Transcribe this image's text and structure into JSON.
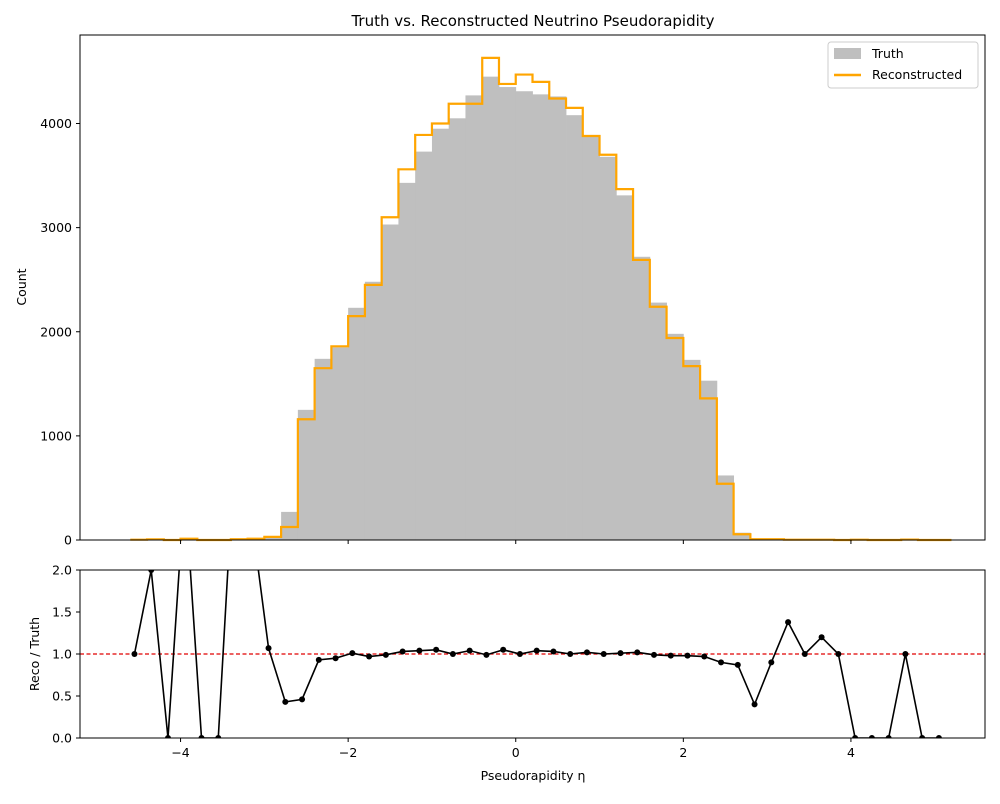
{
  "chart_data": [
    {
      "type": "bar",
      "title": "Truth vs. Reconstructed Neutrino Pseudorapidity",
      "xlabel": "",
      "ylabel": "Count",
      "xlim": [
        -5.2,
        5.6
      ],
      "ylim": [
        0,
        4850
      ],
      "yticks": [
        0,
        1000,
        2000,
        3000,
        4000
      ],
      "yticklabels": [
        "0",
        "1000",
        "2000",
        "3000",
        "4000"
      ],
      "xticks": [
        -4,
        -2,
        0,
        2,
        4
      ],
      "bin_edges": [
        -4.6,
        -4.4,
        -4.2,
        -4.0,
        -3.8,
        -3.6,
        -3.4,
        -3.2,
        -3.0,
        -2.8,
        -2.6,
        -2.4,
        -2.2,
        -2.0,
        -1.8,
        -1.6,
        -1.4,
        -1.2,
        -1.0,
        -0.8,
        -0.6,
        -0.4,
        -0.2,
        0.0,
        0.2,
        0.4,
        0.6,
        0.8,
        1.0,
        1.2,
        1.4,
        1.6,
        1.8,
        2.0,
        2.2,
        2.4,
        2.6,
        2.8,
        3.0,
        3.2,
        3.4,
        3.6,
        3.8,
        4.0,
        4.2,
        4.4,
        4.6,
        4.8,
        5.0,
        5.2
      ],
      "legend": {
        "position": "upper right",
        "entries": [
          "Truth",
          "Reconstructed"
        ]
      },
      "series": [
        {
          "name": "Truth",
          "style": "filled-histogram",
          "color": "#bfbfbf",
          "values": [
            3,
            3,
            2,
            3,
            4,
            3,
            5,
            5,
            28,
            270,
            1250,
            1740,
            1850,
            2230,
            2480,
            3030,
            3430,
            3730,
            3950,
            4050,
            4270,
            4450,
            4350,
            4310,
            4280,
            4260,
            4080,
            3890,
            3680,
            3310,
            2720,
            2280,
            1980,
            1730,
            1530,
            620,
            70,
            4,
            3,
            4,
            3,
            3,
            4,
            3,
            3,
            3,
            4,
            3,
            3
          ]
        },
        {
          "name": "Reconstructed",
          "style": "step",
          "color": "#ffa500",
          "values": [
            3,
            6,
            0,
            12,
            0,
            0,
            8,
            12,
            30,
            125,
            1160,
            1650,
            1860,
            2150,
            2450,
            3100,
            3560,
            3890,
            4000,
            4190,
            4190,
            4630,
            4380,
            4470,
            4400,
            4240,
            4150,
            3880,
            3700,
            3370,
            2690,
            2240,
            1940,
            1670,
            1360,
            540,
            55,
            8,
            8,
            3,
            3,
            3,
            0,
            3,
            0,
            0,
            4,
            0,
            0
          ]
        }
      ]
    },
    {
      "type": "line",
      "xlabel": "Pseudorapidity η",
      "ylabel": "Reco / Truth",
      "xlim": [
        -5.2,
        5.6
      ],
      "ylim": [
        0,
        2.0
      ],
      "yticks": [
        0,
        0.5,
        1.0,
        1.5,
        2.0
      ],
      "yticklabels": [
        "0.0",
        "0.5",
        "1.0",
        "1.5",
        "2.0"
      ],
      "xticks": [
        -4,
        -2,
        0,
        2,
        4
      ],
      "xticklabels": [
        "−4",
        "−2",
        "0",
        "2",
        "4"
      ],
      "reference_line": {
        "y": 1.0,
        "color": "#e00000",
        "style": "dashed"
      },
      "series": [
        {
          "name": "Reco / Truth",
          "color": "#000000",
          "marker": "circle",
          "x": [
            -4.55,
            -4.35,
            -4.15,
            -3.95,
            -3.75,
            -3.55,
            -3.35,
            -3.15,
            -2.95,
            -2.75,
            -2.55,
            -2.35,
            -2.15,
            -1.95,
            -1.75,
            -1.55,
            -1.35,
            -1.15,
            -0.95,
            -0.75,
            -0.55,
            -0.35,
            -0.15,
            0.05,
            0.25,
            0.45,
            0.65,
            0.85,
            1.05,
            1.25,
            1.45,
            1.65,
            1.85,
            2.05,
            2.25,
            2.45,
            2.65,
            2.85,
            3.05,
            3.25,
            3.45,
            3.65,
            3.85,
            4.05,
            4.25,
            4.45,
            4.65,
            4.85,
            5.05
          ],
          "y": [
            1.0,
            2.0,
            0.0,
            3.0,
            0.0,
            0.0,
            3.5,
            2.6,
            1.07,
            0.43,
            0.46,
            0.93,
            0.95,
            1.01,
            0.97,
            0.99,
            1.03,
            1.04,
            1.05,
            1.0,
            1.04,
            0.99,
            1.05,
            1.0,
            1.04,
            1.03,
            1.0,
            1.02,
            1.0,
            1.01,
            1.02,
            0.99,
            0.98,
            0.98,
            0.97,
            0.9,
            0.87,
            0.4,
            0.9,
            1.38,
            1.0,
            1.2,
            1.0,
            0.0,
            0.0,
            0.0,
            1.0,
            0.0,
            0.0
          ]
        }
      ]
    }
  ]
}
